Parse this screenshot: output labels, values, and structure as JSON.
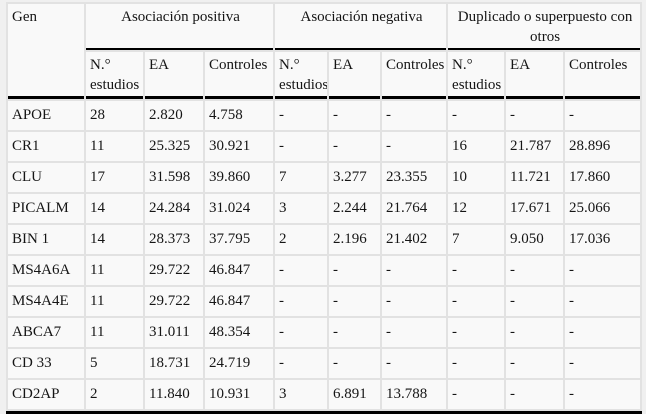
{
  "colors": {
    "page": "#f0f0f0",
    "grid": "#e2e2e2",
    "cell": "#f9f9f9",
    "rule": "#000000",
    "text": "#151515"
  },
  "table": {
    "gen_header": "Gen",
    "groups": [
      {
        "label": "Asociación positiva"
      },
      {
        "label": "Asociación negativa"
      },
      {
        "label": "Duplicado o superpuesto con otros"
      }
    ],
    "subheaders": [
      "N.° estudios",
      "EA",
      "Controles",
      "N.° estudios",
      "EA",
      "Controles",
      "N.° estudios",
      "EA",
      "Controles"
    ],
    "rows": [
      {
        "gen": "APOE",
        "cells": [
          "28",
          "2.820",
          "4.758",
          "-",
          "-",
          "-",
          "-",
          "-",
          "-"
        ]
      },
      {
        "gen": "CR1",
        "cells": [
          "11",
          "25.325",
          "30.921",
          "-",
          "-",
          "-",
          "16",
          "21.787",
          "28.896"
        ]
      },
      {
        "gen": "CLU",
        "cells": [
          "17",
          "31.598",
          "39.860",
          "7",
          "3.277",
          "23.355",
          "10",
          "11.721",
          "17.860"
        ]
      },
      {
        "gen": "PICALM",
        "cells": [
          "14",
          "24.284",
          "31.024",
          "3",
          "2.244",
          "21.764",
          "12",
          "17.671",
          "25.066"
        ]
      },
      {
        "gen": "BIN 1",
        "cells": [
          "14",
          "28.373",
          "37.795",
          "2",
          "2.196",
          "21.402",
          "7",
          "9.050",
          "17.036"
        ]
      },
      {
        "gen": "MS4A6A",
        "cells": [
          "11",
          "29.722",
          "46.847",
          "-",
          "-",
          "-",
          "-",
          "-",
          "-"
        ]
      },
      {
        "gen": "MS4A4E",
        "cells": [
          "11",
          "29.722",
          "46.847",
          "-",
          "-",
          "-",
          "-",
          "-",
          "-"
        ]
      },
      {
        "gen": "ABCA7",
        "cells": [
          "11",
          "31.011",
          "48.354",
          "-",
          "-",
          "-",
          "-",
          "-",
          "-"
        ]
      },
      {
        "gen": "CD 33",
        "cells": [
          "5",
          "18.731",
          "24.719",
          "-",
          "-",
          "-",
          "-",
          "-",
          "-"
        ]
      },
      {
        "gen": "CD2AP",
        "cells": [
          "2",
          "11.840",
          "10.931",
          "3",
          "6.891",
          "13.788",
          "-",
          "-",
          "-"
        ]
      }
    ]
  }
}
